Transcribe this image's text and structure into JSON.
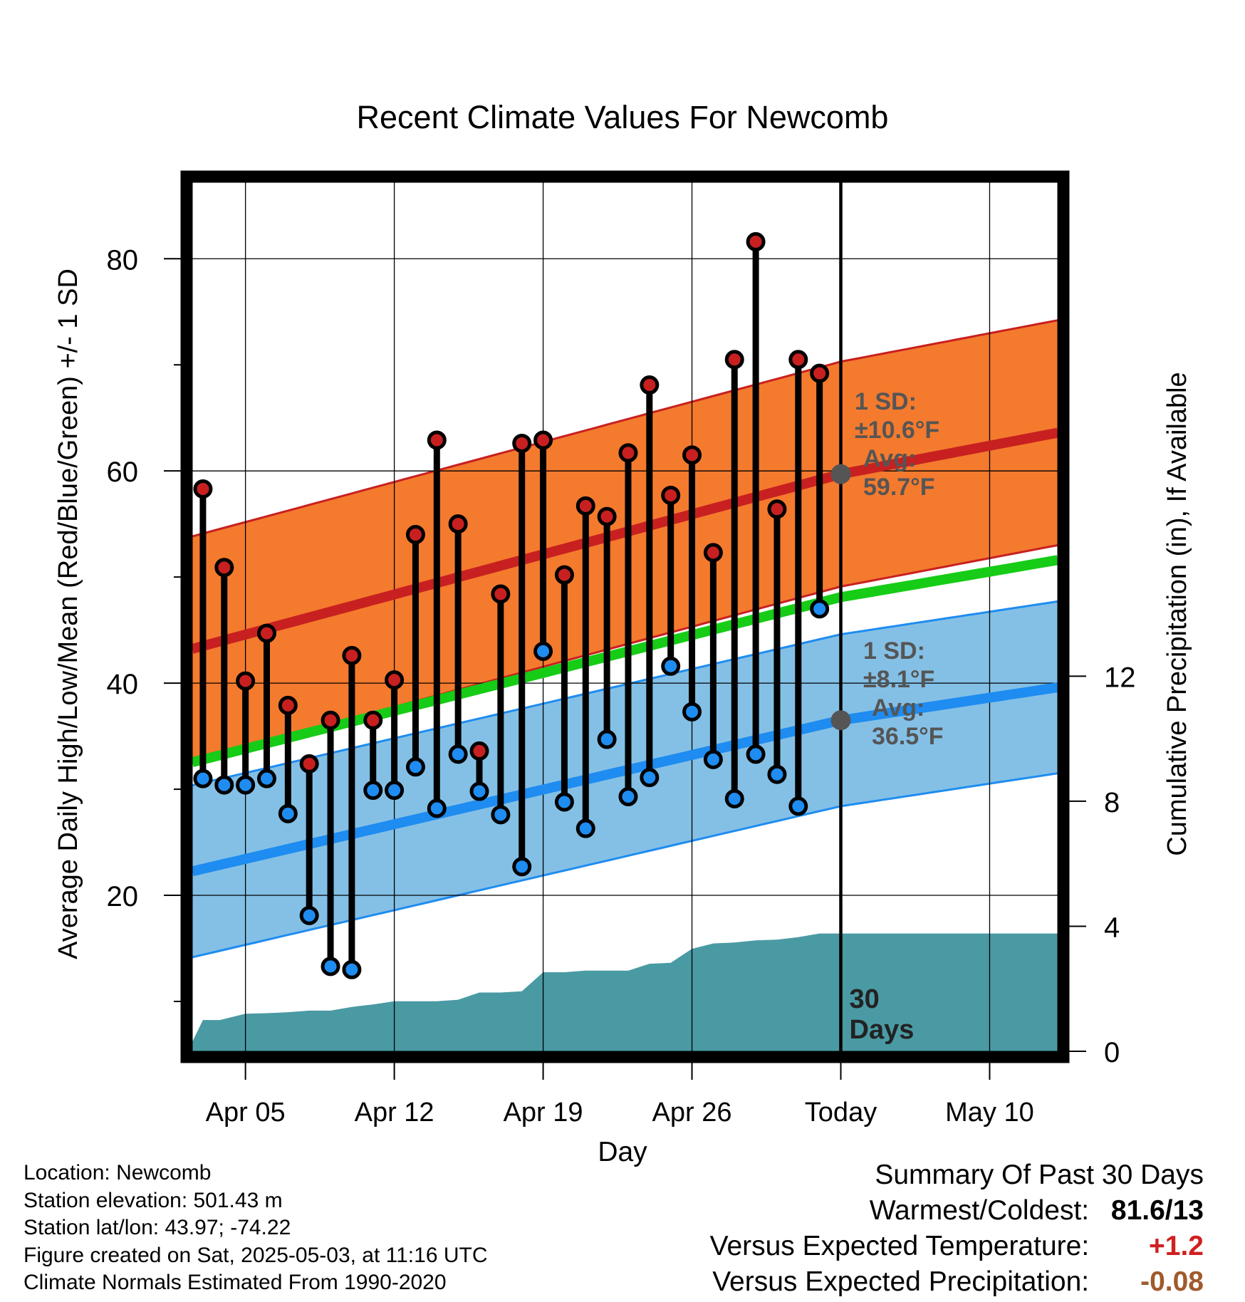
{
  "chart_data": {
    "type": "line",
    "title": "Recent Climate Values For Newcomb",
    "xlabel": "Day",
    "ylabel": "Average Daily High/Low/Mean (Red/Blue/Green) +/- 1 SD",
    "ylabel_right": "Cumulative Precipitation (in), If Available",
    "x_tick_labels": [
      "Apr 05",
      "Apr 12",
      "Apr 19",
      "Apr 26",
      "Today",
      "May 10"
    ],
    "x_tick_days": [
      5,
      12,
      19,
      26,
      33,
      40
    ],
    "y_ticks": [
      20,
      40,
      60,
      80
    ],
    "y_right_ticks": [
      0,
      4,
      8,
      12
    ],
    "xlim": [
      2.5,
      43.2
    ],
    "ylim": [
      5.3,
      87.2
    ],
    "ylim_right": [
      0,
      27.8
    ],
    "grid": true,
    "today_day": 33,
    "today_label": "30 Days",
    "colors": {
      "high": "#c82020",
      "high_band": "#f47a2e",
      "low": "#1e8cf0",
      "low_band": "#84c0e6",
      "mean": "#16cc16",
      "precip": "#4a9aa4",
      "annotation": "#555555"
    },
    "normals": {
      "days": [
        3,
        33,
        43.2
      ],
      "high_mean": [
        43.5,
        59.7,
        63.6
      ],
      "high_sd": 10.6,
      "low_mean": [
        22.5,
        36.5,
        39.6
      ],
      "low_sd": 8.1,
      "daily_mean": [
        32.8,
        48.1,
        51.6
      ]
    },
    "annotations": [
      {
        "line1": "1 SD:",
        "line2": "±10.6°F",
        "line3": "Avg:",
        "line4": "59.7°F",
        "value": 59.7
      },
      {
        "line1": "1 SD:",
        "line2": "±8.1°F",
        "line3": "Avg:",
        "line4": "36.5°F",
        "value": 36.5
      }
    ],
    "series": [
      {
        "name": "High",
        "x": [
          3,
          4,
          5,
          6,
          7,
          8,
          9,
          10,
          11,
          12,
          13,
          14,
          15,
          16,
          17,
          18,
          19,
          20,
          21,
          22,
          23,
          24,
          25,
          26,
          27,
          28,
          29,
          30,
          31,
          32
        ],
        "values": [
          58.3,
          50.9,
          40.2,
          44.7,
          37.9,
          32.4,
          36.5,
          42.6,
          36.5,
          40.3,
          54.0,
          62.9,
          55.0,
          33.6,
          48.4,
          62.6,
          62.9,
          50.2,
          56.7,
          55.7,
          61.7,
          68.1,
          57.7,
          61.5,
          52.3,
          70.5,
          81.6,
          56.4,
          70.5,
          69.2
        ]
      },
      {
        "name": "Low",
        "x": [
          3,
          4,
          5,
          6,
          7,
          8,
          9,
          10,
          11,
          12,
          13,
          14,
          15,
          16,
          17,
          18,
          19,
          20,
          21,
          22,
          23,
          24,
          25,
          26,
          27,
          28,
          29,
          30,
          31,
          32
        ],
        "values": [
          31.0,
          30.4,
          30.4,
          31.0,
          27.7,
          18.1,
          13.3,
          13.0,
          29.9,
          29.9,
          32.1,
          28.2,
          33.3,
          29.8,
          27.6,
          22.7,
          43.0,
          28.8,
          26.3,
          34.7,
          29.3,
          31.1,
          41.6,
          37.3,
          32.8,
          29.1,
          33.3,
          31.4,
          28.4,
          47.0
        ]
      },
      {
        "name": "Cumulative Precipitation",
        "x": [
          2.5,
          3,
          3.8,
          5,
          6,
          7,
          8,
          9,
          10,
          11,
          12,
          13,
          14,
          15,
          16,
          17,
          18,
          19,
          20,
          21,
          22,
          23,
          24,
          25,
          26,
          27,
          28,
          29,
          30,
          31,
          32,
          33,
          43.2
        ],
        "values": [
          0.3,
          1.0,
          1.0,
          1.2,
          1.22,
          1.25,
          1.3,
          1.3,
          1.42,
          1.5,
          1.6,
          1.6,
          1.6,
          1.65,
          1.88,
          1.88,
          1.92,
          2.53,
          2.53,
          2.58,
          2.58,
          2.58,
          2.8,
          2.83,
          3.28,
          3.45,
          3.48,
          3.55,
          3.57,
          3.65,
          3.77,
          3.77,
          3.77
        ]
      }
    ]
  },
  "info": {
    "location": "Location: Newcomb",
    "elevation": "Station elevation: 501.43 m",
    "latlon": "Station lat/lon: 43.97; -74.22",
    "created": "Figure created on Sat, 2025-05-03, at 11:16 UTC",
    "normals": "Climate Normals Estimated From 1990-2020"
  },
  "summary": {
    "title": "Summary Of Past 30 Days",
    "warmest_label": "Warmest/Coldest:",
    "warmest_value": "81.6/13",
    "temp_label": "Versus Expected Temperature:",
    "temp_value": "+1.2",
    "temp_color": "#d02020",
    "precip_label": "Versus Expected Precipitation:",
    "precip_value": "-0.08",
    "precip_color": "#a05a2c"
  }
}
